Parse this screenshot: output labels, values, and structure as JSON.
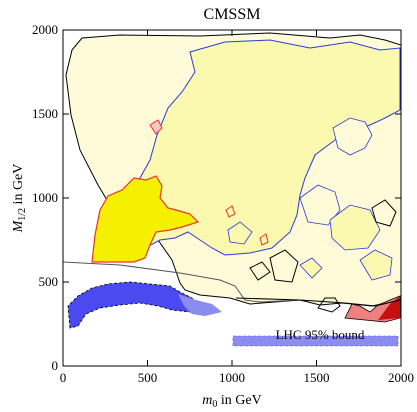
{
  "chart_data": {
    "type": "contour",
    "title": "CMSSM",
    "xlabel": "m0 in GeV",
    "ylabel": "M1/2 in GeV",
    "xlim": [
      0,
      2000
    ],
    "ylim": [
      0,
      2000
    ],
    "x_ticks": [
      "0",
      "500",
      "1000",
      "1500",
      "2000"
    ],
    "y_ticks": [
      "0",
      "500",
      "1000",
      "1500",
      "2000"
    ],
    "x_tick_values": [
      0,
      500,
      1000,
      1500,
      2000
    ],
    "y_tick_values": [
      0,
      500,
      1000,
      1500,
      2000
    ],
    "legend": [
      {
        "label": "LHC 95% bound",
        "color": "#8c8cf0"
      }
    ],
    "colors": {
      "allowed_region": "#fffbd9",
      "preferred_region": "#fbf8b0",
      "best_fit_region": "#f4f000",
      "best_fit_outline": "#e8352c",
      "blue_contour": "#2b3bd8",
      "black_contour": "#000000",
      "blue_excluded": "#4a4af0",
      "red_excluded": "#f08080",
      "lhc_band": "#8c8cf0"
    }
  }
}
